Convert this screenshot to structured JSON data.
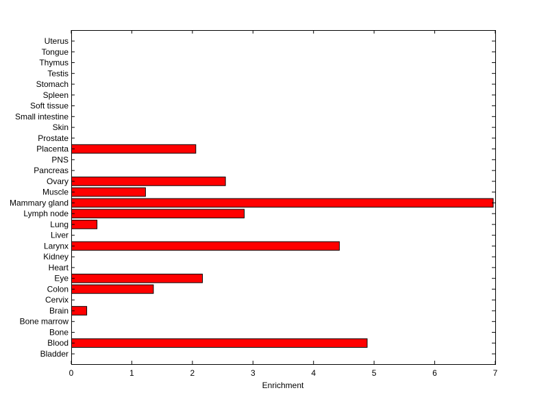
{
  "chart_data": {
    "type": "bar",
    "orientation": "horizontal",
    "title": "",
    "xlabel": "Enrichment",
    "ylabel": "",
    "xlim": [
      0,
      7
    ],
    "xticks": [
      0,
      1,
      2,
      3,
      4,
      5,
      6,
      7
    ],
    "grid": false,
    "legend": "none",
    "bar_color": "#ff0000",
    "bar_edge_color": "#000000",
    "categories": [
      "Bladder",
      "Blood",
      "Bone",
      "Bone marrow",
      "Brain",
      "Cervix",
      "Colon",
      "Eye",
      "Heart",
      "Kidney",
      "Larynx",
      "Liver",
      "Lung",
      "Lymph node",
      "Mammary gland",
      "Muscle",
      "Ovary",
      "Pancreas",
      "PNS",
      "Placenta",
      "Prostate",
      "Skin",
      "Small intestine",
      "Soft tissue",
      "Spleen",
      "Stomach",
      "Testis",
      "Thymus",
      "Tongue",
      "Uterus"
    ],
    "values": [
      0,
      4.88,
      0,
      0,
      0.25,
      0,
      1.35,
      2.16,
      0,
      0,
      4.42,
      0,
      0.42,
      2.85,
      6.96,
      1.22,
      2.54,
      0,
      0,
      2.05,
      0,
      0,
      0,
      0,
      0,
      0,
      0,
      0,
      0,
      0
    ]
  }
}
